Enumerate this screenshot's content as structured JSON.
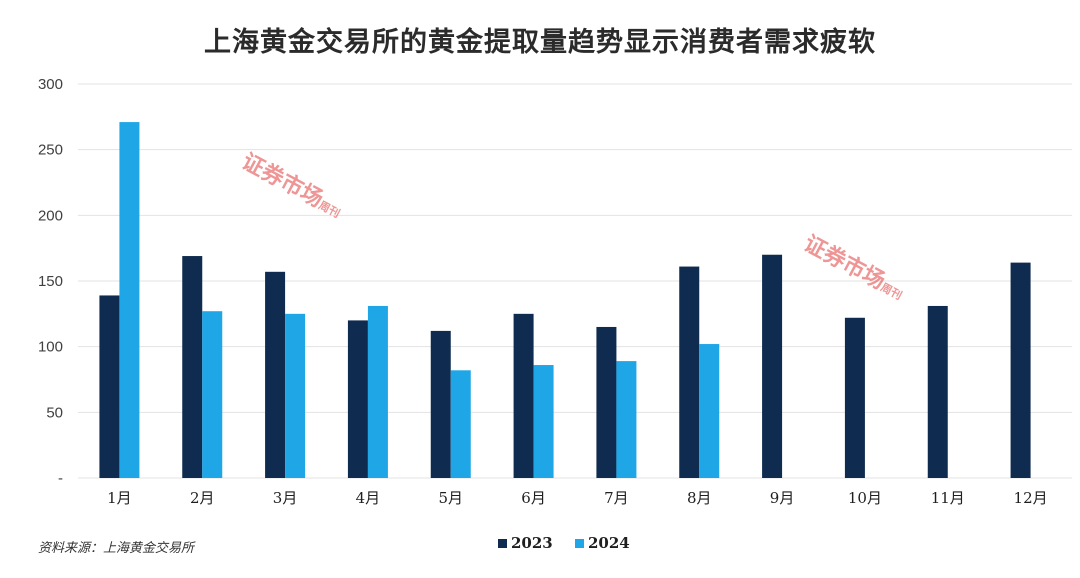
{
  "chart_data": {
    "type": "bar",
    "title": "上海黄金交易所的黄金提取量趋势显示消费者需求疲软",
    "categories": [
      "1月",
      "2月",
      "3月",
      "4月",
      "5月",
      "6月",
      "7月",
      "8月",
      "9月",
      "10月",
      "11月",
      "12月"
    ],
    "series": [
      {
        "name": "2023",
        "color": "#0f2b4f",
        "values": [
          139,
          169,
          157,
          120,
          112,
          125,
          115,
          161,
          170,
          122,
          131,
          164
        ]
      },
      {
        "name": "2024",
        "color": "#1ea6e6",
        "values": [
          271,
          127,
          125,
          131,
          82,
          86,
          89,
          102,
          null,
          null,
          null,
          null
        ]
      }
    ],
    "yticks": [
      0,
      50,
      100,
      150,
      200,
      250,
      300
    ],
    "ytick_labels": [
      "-",
      "50",
      "100",
      "150",
      "200",
      "250",
      "300"
    ],
    "ylim": [
      0,
      300
    ],
    "grid": true,
    "legend": "bottom-center"
  },
  "source": "资料来源：上海黄金交易所",
  "watermark": {
    "text": "证券市场",
    "sub": "周刊"
  }
}
